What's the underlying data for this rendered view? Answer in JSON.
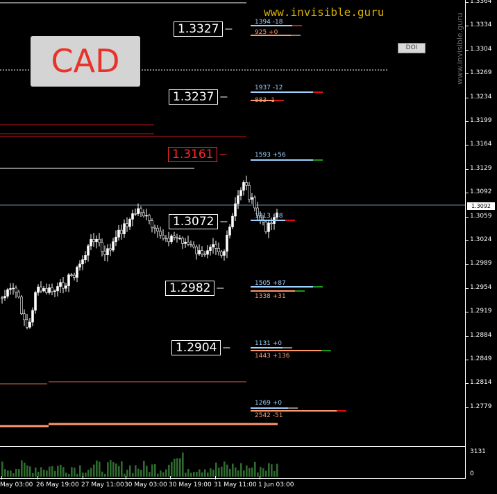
{
  "symbol_label": "CAD",
  "brand_text": "www.invisible.guru",
  "watermark_text": "www.invisible.guru",
  "doi_button_label": "DOI",
  "current_price": "1.3092",
  "y_axis_ticks": [
    "1.3364",
    "1.3334",
    "1.3304",
    "1.3269",
    "1.3234",
    "1.3199",
    "1.3164",
    "1.3129",
    "1.3092",
    "1.3059",
    "1.3024",
    "1.2989",
    "1.2954",
    "1.2919",
    "1.2884",
    "1.2849",
    "1.2814",
    "1.2779"
  ],
  "x_axis_ticks": [
    "May 03:00",
    "26 May 19:00",
    "27 May 11:00",
    "30 May 03:00",
    "30 May 19:00",
    "31 May 11:00",
    "1 Jun 03:00"
  ],
  "volume_axis": {
    "max": "3131",
    "min": "0"
  },
  "levels": [
    {
      "price": "1.3327",
      "color": "white",
      "tags": [
        {
          "text": "1394 -18",
          "color": "blue"
        },
        {
          "text": "925 +0",
          "color": "orange"
        }
      ]
    },
    {
      "price": "1.3237",
      "color": "white",
      "tags": [
        {
          "text": "1937 -12",
          "color": "blue"
        },
        {
          "text": "883 -1",
          "color": "orange"
        }
      ]
    },
    {
      "price": "1.3161",
      "color": "red",
      "tags": [
        {
          "text": "1593 +56",
          "color": "blue"
        }
      ]
    },
    {
      "price": "1.3072",
      "color": "white",
      "tags": [
        {
          "text": "1213 -38",
          "color": "blue"
        }
      ]
    },
    {
      "price": "1.2982",
      "color": "white",
      "tags": [
        {
          "text": "1505 +87",
          "color": "blue"
        },
        {
          "text": "1338 +31",
          "color": "orange"
        }
      ]
    },
    {
      "price": "1.2904",
      "color": "white",
      "tags": [
        {
          "text": "1131 +0",
          "color": "blue"
        },
        {
          "text": "1443 +136",
          "color": "orange"
        }
      ]
    },
    {
      "price": "",
      "color": "white",
      "tags": [
        {
          "text": "1269 +0",
          "color": "blue"
        },
        {
          "text": "2542 -51",
          "color": "orange"
        }
      ]
    }
  ],
  "colors": {
    "background": "#000000",
    "bull": "#ffffff",
    "bear": "#000000",
    "wick": "#ffffff",
    "level_red": "#ff2a2a",
    "brand": "#d4b000",
    "blue_tag": "#9fd2ff",
    "orange_tag": "#ff9a6b",
    "volume": "#2e6b2e"
  }
}
